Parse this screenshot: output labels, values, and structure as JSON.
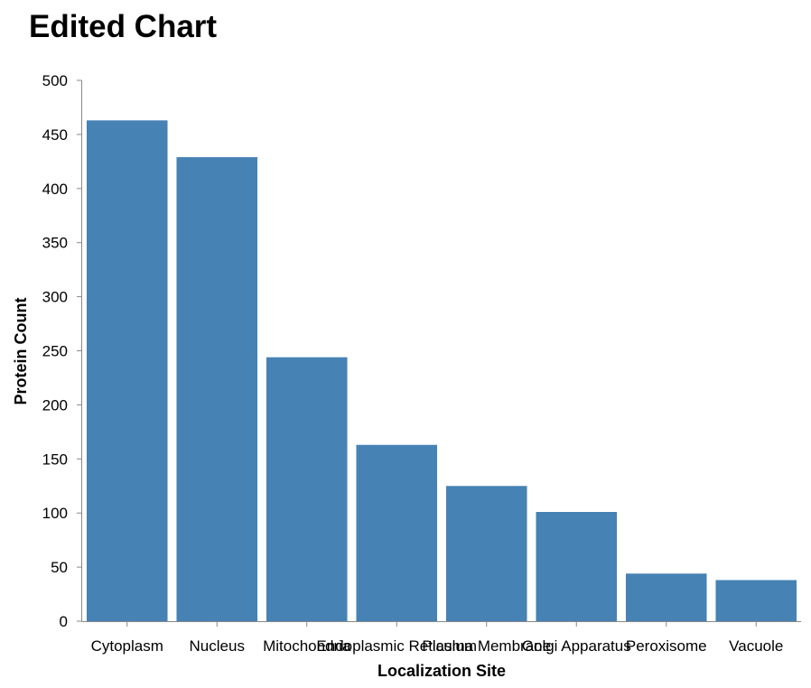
{
  "chart_data": {
    "type": "bar",
    "title": "Edited Chart",
    "xlabel": "Localization Site",
    "ylabel": "Protein Count",
    "categories": [
      "Cytoplasm",
      "Nucleus",
      "Mitochondria",
      "Endoplasmic Reticulum",
      "Plasma Membrane",
      "Golgi Apparatus",
      "Peroxisome",
      "Vacuole"
    ],
    "values": [
      463,
      429,
      244,
      163,
      125,
      101,
      44,
      38
    ],
    "ylim": [
      0,
      500
    ],
    "yticks": [
      0,
      50,
      100,
      150,
      200,
      250,
      300,
      350,
      400,
      450,
      500
    ],
    "grid": false,
    "bar_color": "#4682b4"
  }
}
